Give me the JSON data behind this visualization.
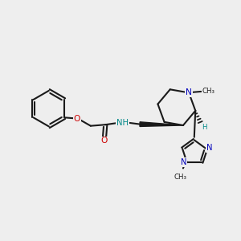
{
  "bg_color": "#eeeeee",
  "bond_color": "#1a1a1a",
  "n_color": "#0000bb",
  "o_color": "#cc0000",
  "nh_color": "#008888",
  "figsize": [
    3.0,
    3.0
  ],
  "dpi": 100,
  "xlim": [
    0,
    10
  ],
  "ylim": [
    0,
    10
  ]
}
